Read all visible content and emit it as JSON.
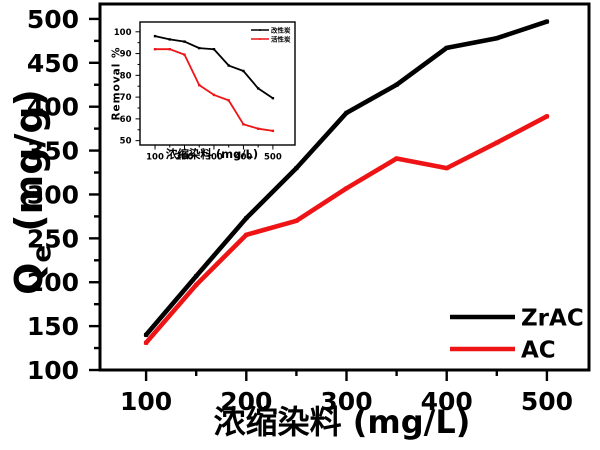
{
  "figure": {
    "background": "#ffffff",
    "axis_color": "#000000",
    "text_color": "#000000",
    "accent_red": "#ee1416"
  },
  "chart_data": [
    {
      "id": "main",
      "type": "line",
      "title": "",
      "xlabel": "浓缩染料 (mg/L)",
      "ylabel": "Qe (mg/g)",
      "ylabel_parts": {
        "q": "Q",
        "sub": "e",
        "units": " (mg/g)"
      },
      "x": [
        100,
        150,
        200,
        250,
        300,
        350,
        400,
        450,
        500
      ],
      "series": [
        {
          "name": "ZrAC",
          "color": "#000000",
          "values": [
            140,
            207,
            273,
            330,
            393,
            425,
            467,
            478,
            497
          ]
        },
        {
          "name": "AC",
          "color": "#ee1416",
          "values": [
            131,
            197,
            254,
            270,
            307,
            341,
            330,
            359,
            389
          ]
        }
      ],
      "xticks": [
        100,
        200,
        300,
        400,
        500
      ],
      "xminorticks": [
        150,
        250,
        350,
        450
      ],
      "yticks": [
        100,
        150,
        200,
        250,
        300,
        350,
        400,
        450,
        500
      ],
      "yminorticks": [
        125,
        175,
        225,
        275,
        325,
        375,
        425,
        475
      ],
      "xlim": [
        54,
        542
      ],
      "ylim": [
        100,
        517
      ],
      "grid": false,
      "legend_position": "lower right"
    },
    {
      "id": "inset",
      "type": "line",
      "title": "",
      "xlabel": "浓缩染料 (mg/L)",
      "ylabel": "Removal %",
      "x": [
        100,
        150,
        200,
        250,
        300,
        350,
        400,
        450,
        500
      ],
      "series": [
        {
          "name": "改性炭",
          "color": "#000000",
          "values": [
            98,
            96.5,
            95.5,
            92.5,
            92,
            84.5,
            82,
            74,
            69.5
          ]
        },
        {
          "name": "活性炭",
          "color": "#ee1416",
          "values": [
            92,
            92,
            89.5,
            75.5,
            71,
            68.5,
            57.5,
            55.5,
            54.5
          ]
        }
      ],
      "xticks": [
        100,
        200,
        300,
        400,
        500
      ],
      "xminorticks": [
        150,
        250,
        350,
        450
      ],
      "yticks": [
        50,
        60,
        70,
        80,
        90,
        100
      ],
      "yminorticks": [
        55,
        65,
        75,
        85,
        95
      ],
      "xlim": [
        49,
        575
      ],
      "ylim": [
        48,
        104.5
      ],
      "grid": false,
      "legend_position": "upper right"
    }
  ]
}
